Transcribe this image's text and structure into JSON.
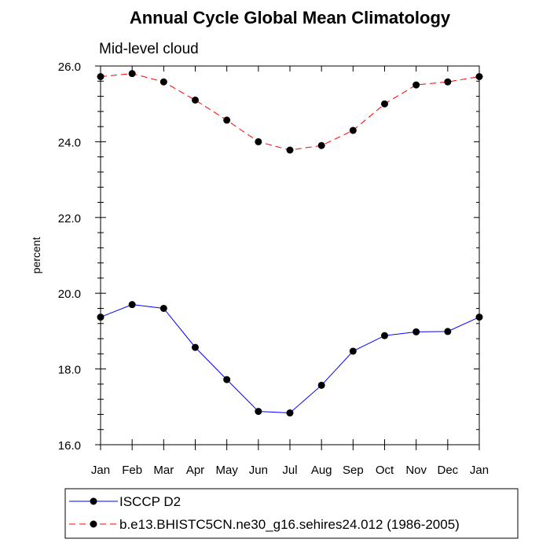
{
  "chart_data": {
    "type": "line",
    "title": "Annual Cycle Global Mean Climatology",
    "subtitle": "Mid-level cloud",
    "xlabel": "",
    "ylabel": "percent",
    "categories": [
      "Jan",
      "Feb",
      "Mar",
      "Apr",
      "May",
      "Jun",
      "Jul",
      "Aug",
      "Sep",
      "Oct",
      "Nov",
      "Dec",
      "Jan"
    ],
    "ylim": [
      16.0,
      26.0
    ],
    "yticks": [
      16.0,
      18.0,
      20.0,
      22.0,
      24.0,
      26.0
    ],
    "ytick_labels": [
      "16.0",
      "18.0",
      "20.0",
      "22.0",
      "24.0",
      "26.0"
    ],
    "grid": false,
    "legend_position": "bottom",
    "series": [
      {
        "name": "ISCCP D2",
        "color": "#0000ff",
        "dash": "solid",
        "marker": "circle",
        "values": [
          19.37,
          19.7,
          19.6,
          18.57,
          17.72,
          16.88,
          16.84,
          17.57,
          18.47,
          18.88,
          18.98,
          18.99,
          19.37
        ]
      },
      {
        "name": "b.e13.BHISTC5CN.ne30_g16.sehires24.012 (1986-2005)",
        "color": "#ff0000",
        "dash": "dashed",
        "marker": "circle",
        "values": [
          25.72,
          25.8,
          25.58,
          25.1,
          24.57,
          24.0,
          23.78,
          23.9,
          24.3,
          25.0,
          25.5,
          25.58,
          25.72
        ]
      }
    ]
  }
}
